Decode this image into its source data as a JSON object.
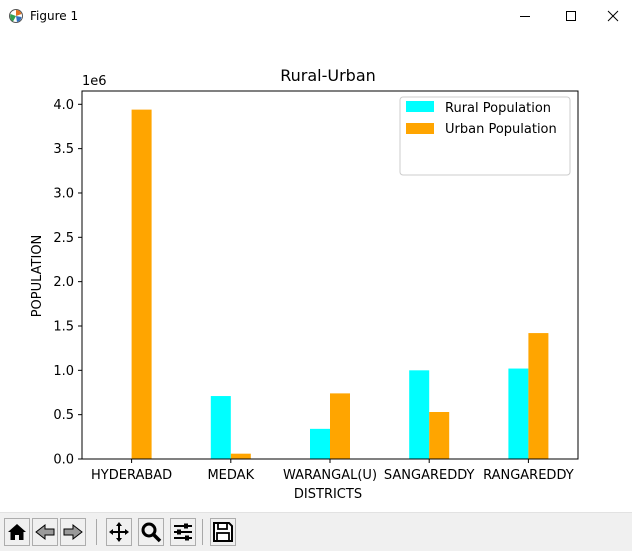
{
  "window": {
    "title": "Figure 1",
    "icons": [
      "figure-app-icon",
      "minimize-icon",
      "maximize-icon",
      "close-icon"
    ]
  },
  "toolbar": {
    "buttons": [
      "home-icon",
      "back-icon",
      "forward-icon",
      "pan-icon",
      "zoom-icon",
      "configure-subplots-icon",
      "save-icon"
    ]
  },
  "chart_data": {
    "type": "bar",
    "title": "Rural-Urban",
    "xlabel": "DISTRICTS",
    "ylabel": "POPULATION",
    "y_offset_label": "1e6",
    "categories": [
      "HYDERABAD",
      "MEDAK",
      "WARANGAL(U)",
      "SANGAREDDY",
      "RANGAREDDY"
    ],
    "series": [
      {
        "name": "Rural Population",
        "color": "#00ffff",
        "values": [
          0,
          710000,
          340000,
          1000000,
          1020000
        ]
      },
      {
        "name": "Urban Population",
        "color": "#ffa500",
        "values": [
          3940000,
          60000,
          740000,
          530000,
          1420000
        ]
      }
    ],
    "ylim": [
      0,
      4150000
    ],
    "yticks": [
      0,
      500000,
      1000000,
      1500000,
      2000000,
      2500000,
      3000000,
      3500000,
      4000000
    ],
    "ytick_labels": [
      "0.0",
      "0.5",
      "1.0",
      "1.5",
      "2.0",
      "2.5",
      "3.0",
      "3.5",
      "4.0"
    ],
    "grid": false,
    "legend": "top-right"
  }
}
